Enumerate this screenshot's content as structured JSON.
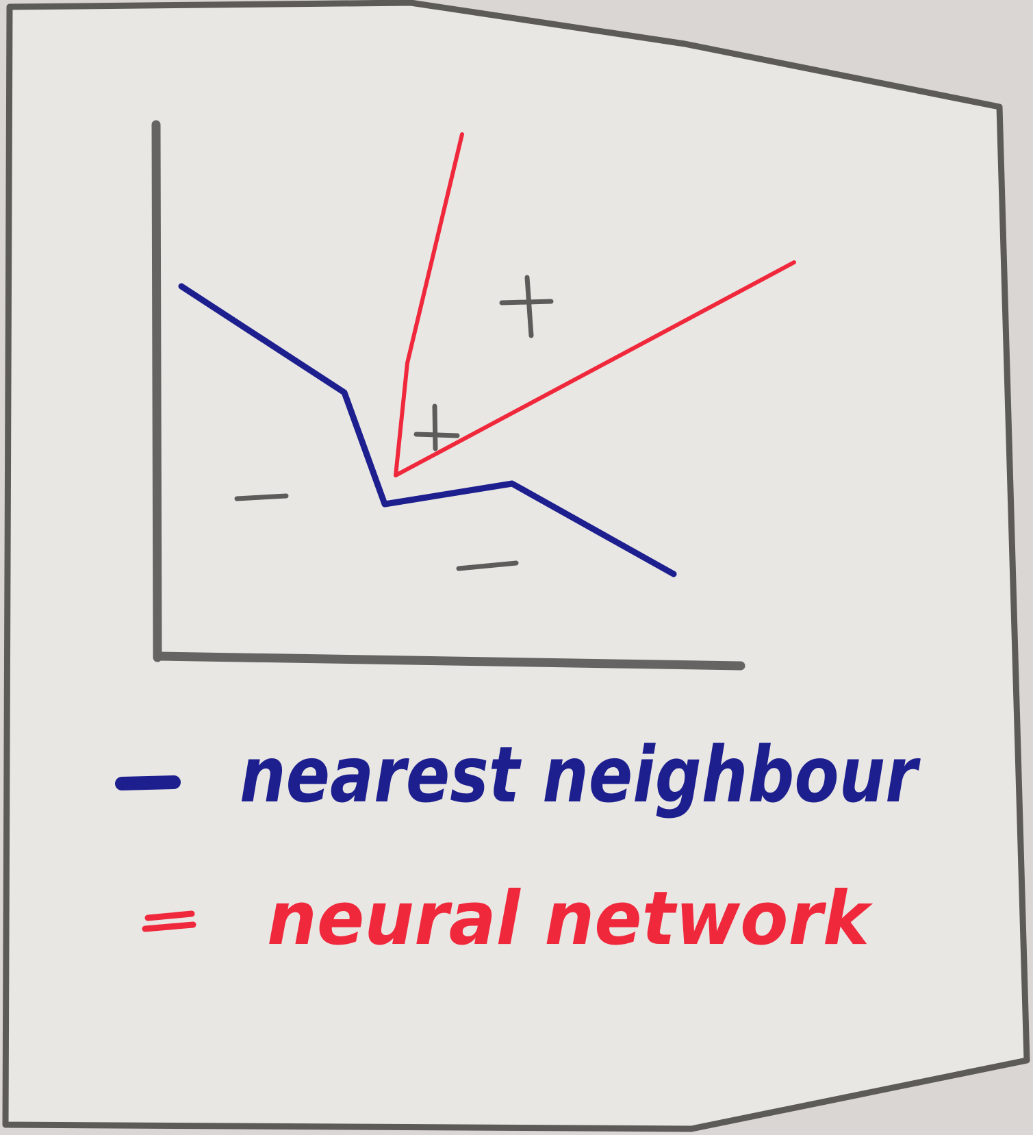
{
  "colors": {
    "paper": "#e9e7e4",
    "frame": "#5d5b58",
    "axis": "#666462",
    "mark": "#5e5c5a",
    "nearest_neighbour": "#1d1f8f",
    "neural_network": "#f0283c"
  },
  "plot": {
    "positive_symbol": "+",
    "negative_symbol": "−",
    "series": [
      {
        "id": "nearest_neighbour",
        "color": "#1d1f8f"
      },
      {
        "id": "neural_network",
        "color": "#f0283c"
      }
    ]
  },
  "legend": {
    "items": [
      {
        "swatch_color": "#1d1f8f",
        "label": "nearest neighbour",
        "label_color": "#1d1f8f"
      },
      {
        "swatch_color": "#f0283c",
        "label": "neural network",
        "label_color": "#f0283c"
      }
    ]
  }
}
